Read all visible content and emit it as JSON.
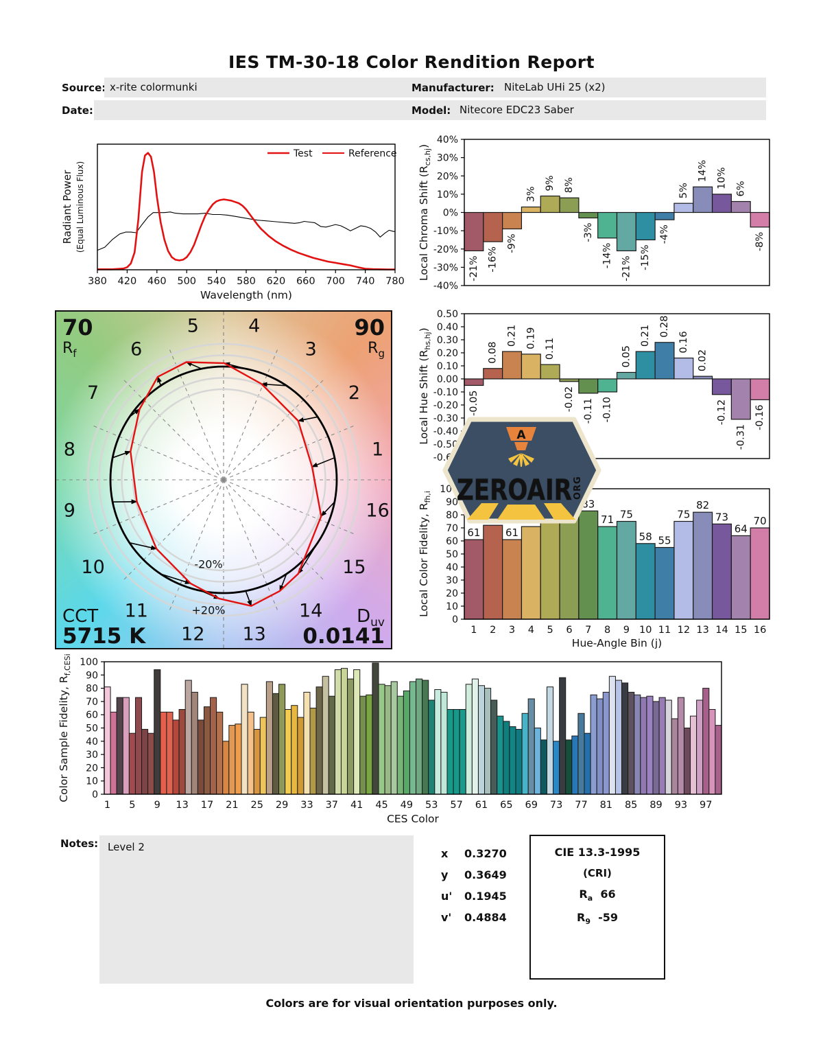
{
  "title": "IES TM-30-18 Color Rendition Report",
  "header": {
    "source_label": "Source:",
    "source_value": "x-rite colormunki",
    "manufacturer_label": "Manufacturer:",
    "manufacturer_value": "NiteLab UHi 25 (x2)",
    "date_label": "Date:",
    "date_value": "",
    "model_label": "Model:",
    "model_value": "Nitecore EDC23 Saber"
  },
  "colors": {
    "test_red": "#e31212",
    "box_gray": "#e8e8e8",
    "bin_colors": [
      "#a25a68",
      "#b5634f",
      "#c98350",
      "#d9b363",
      "#afaa56",
      "#8b9e53",
      "#63904f",
      "#4fb391",
      "#64a8a3",
      "#2e8fa2",
      "#3f7ea7",
      "#b2bce7",
      "#878cb8",
      "#77589c",
      "#a383ad",
      "#d27ea9"
    ],
    "cvg_wheel": [
      "#dcc89a",
      "#eda173",
      "#f2a9bb",
      "#cfaaec",
      "#a9c6f2",
      "#5cd8ea",
      "#7cd8a8",
      "#93cb80"
    ],
    "logo_navy": "#3c4e63",
    "logo_orange": "#e8833c",
    "logo_yellow": "#f4c340",
    "logo_cream": "#ede4cc"
  },
  "chart_data": {
    "spd": {
      "type": "line",
      "xlabel": "Wavelength (nm)",
      "ylabel_line1": "Radiant Power",
      "ylabel_line2": "(Equal Luminous Flux)",
      "xlim": [
        380,
        780
      ],
      "xticks": [
        380,
        420,
        460,
        500,
        540,
        580,
        620,
        660,
        700,
        740,
        780
      ],
      "legend": [
        {
          "label": "Test",
          "swatch": "#e31212",
          "text_color": "#e31212"
        },
        {
          "label": "Reference",
          "swatch": "#e31212",
          "text_color": "#111111"
        }
      ],
      "series": [
        {
          "name": "Test",
          "color": "#e31212",
          "width": 2.6,
          "x": [
            380,
            400,
            415,
            420,
            425,
            430,
            435,
            440,
            444,
            448,
            452,
            456,
            460,
            465,
            470,
            475,
            480,
            485,
            490,
            495,
            500,
            505,
            510,
            515,
            520,
            525,
            530,
            535,
            540,
            545,
            550,
            555,
            560,
            565,
            570,
            575,
            580,
            585,
            590,
            595,
            600,
            610,
            620,
            630,
            640,
            650,
            660,
            670,
            680,
            690,
            700,
            710,
            720,
            730,
            740,
            750,
            760,
            770,
            780
          ],
          "y": [
            0.004,
            0.004,
            0.01,
            0.02,
            0.05,
            0.14,
            0.4,
            0.78,
            0.91,
            0.93,
            0.9,
            0.78,
            0.58,
            0.38,
            0.24,
            0.15,
            0.1,
            0.08,
            0.075,
            0.08,
            0.1,
            0.14,
            0.2,
            0.28,
            0.36,
            0.43,
            0.48,
            0.52,
            0.545,
            0.555,
            0.56,
            0.555,
            0.55,
            0.54,
            0.53,
            0.51,
            0.48,
            0.44,
            0.4,
            0.36,
            0.325,
            0.27,
            0.225,
            0.19,
            0.16,
            0.135,
            0.115,
            0.095,
            0.08,
            0.065,
            0.055,
            0.045,
            0.035,
            0.02,
            0.008,
            0.005,
            0.004,
            0.003,
            0.003
          ]
        },
        {
          "name": "Reference",
          "color": "#000000",
          "width": 1.1,
          "x": [
            380,
            390,
            400,
            410,
            418,
            425,
            432,
            440,
            448,
            455,
            462,
            470,
            478,
            485,
            495,
            505,
            515,
            525,
            535,
            545,
            555,
            565,
            575,
            585,
            595,
            605,
            615,
            625,
            635,
            645,
            652,
            658,
            665,
            672,
            680,
            687,
            694,
            700,
            707,
            714,
            720,
            727,
            734,
            740,
            747,
            754,
            760,
            766,
            772,
            778,
            780
          ],
          "y": [
            0.155,
            0.18,
            0.24,
            0.285,
            0.3,
            0.3,
            0.295,
            0.36,
            0.42,
            0.455,
            0.455,
            0.455,
            0.46,
            0.45,
            0.445,
            0.445,
            0.445,
            0.45,
            0.44,
            0.44,
            0.435,
            0.425,
            0.415,
            0.405,
            0.395,
            0.39,
            0.385,
            0.38,
            0.375,
            0.37,
            0.375,
            0.385,
            0.38,
            0.375,
            0.345,
            0.34,
            0.35,
            0.36,
            0.35,
            0.33,
            0.31,
            0.33,
            0.35,
            0.345,
            0.33,
            0.3,
            0.26,
            0.29,
            0.315,
            0.305,
            0.305
          ]
        }
      ]
    },
    "chroma": {
      "type": "bar",
      "ylabel_pre": "Local Chroma Shift (R",
      "ylabel_sub": "cs,hj",
      "ylabel_post": ")",
      "ylim": [
        -40,
        40
      ],
      "ytick_vals": [
        40,
        30,
        20,
        10,
        0,
        -10,
        -20,
        -30,
        -40
      ],
      "ytick_labels": [
        "40%",
        "30%",
        "20%",
        "10%",
        "0%",
        "-10%",
        "-20%",
        "-30%",
        "-40%"
      ],
      "values": [
        -21,
        -16,
        -9,
        3,
        9,
        8,
        -3,
        -14,
        -21,
        -15,
        -4,
        5,
        14,
        10,
        6,
        -8
      ],
      "labels": [
        "-21%",
        "-16%",
        "-9%",
        "3%",
        "9%",
        "8%",
        "-3%",
        "-14%",
        "-21%",
        "-15%",
        "-4%",
        "5%",
        "14%",
        "10%",
        "6%",
        "-8%"
      ],
      "label_mode": "rotated"
    },
    "hue": {
      "type": "bar",
      "ylabel_pre": "Local Hue Shift (R",
      "ylabel_sub": "hs,hj",
      "ylabel_post": ")",
      "ylim": [
        -0.611,
        0.5
      ],
      "ytick_vals": [
        0.5,
        0.4,
        0.3,
        0.2,
        0.1,
        0,
        -0.1,
        -0.2,
        -0.3,
        -0.4,
        -0.5,
        -0.6
      ],
      "ytick_labels": [
        "0.50",
        "0.40",
        "0.30",
        "0.20",
        "0.10",
        "0.00",
        "-0.10",
        "-0.20",
        "-0.30",
        "-0.40",
        "-0.50",
        "-0.60"
      ],
      "values": [
        -0.05,
        0.08,
        0.21,
        0.19,
        0.11,
        -0.02,
        -0.11,
        -0.1,
        0.05,
        0.21,
        0.28,
        0.16,
        0.02,
        -0.12,
        -0.31,
        -0.16
      ],
      "labels": [
        "-0.05",
        "0.08",
        "0.21",
        "0.19",
        "0.11",
        "-0.02",
        "-0.11",
        "-0.10",
        "0.05",
        "0.21",
        "0.28",
        "0.16",
        "0.02",
        "-0.12",
        "-0.31",
        "-0.16"
      ],
      "label_mode": "rotated"
    },
    "fidelity": {
      "type": "bar",
      "ylabel_pre": "Local Color Fidelity, R",
      "ylabel_sub": "fh,i",
      "ylabel_post": "",
      "xlabel": "Hue-Angle Bin (j)",
      "ylim": [
        0,
        100
      ],
      "ytick_vals": [
        0,
        10,
        20,
        30,
        40,
        50,
        60,
        70,
        80,
        90,
        100
      ],
      "ytick_labels": [
        "0",
        "10",
        "20",
        "30",
        "40",
        "50",
        "60",
        "70",
        "80",
        "90",
        "100"
      ],
      "values": [
        61,
        72,
        61,
        71,
        76,
        86,
        83,
        71,
        75,
        58,
        55,
        75,
        82,
        73,
        64,
        70
      ],
      "labels": [
        "61",
        "72",
        "61",
        "71",
        "76",
        "86",
        "83",
        "71",
        "75",
        "58",
        "55",
        "75",
        "82",
        "73",
        "64",
        "70"
      ],
      "label_mode": "horizontal",
      "xticks": [
        1,
        2,
        3,
        4,
        5,
        6,
        7,
        8,
        9,
        10,
        11,
        12,
        13,
        14,
        15,
        16
      ]
    },
    "ces": {
      "type": "bar",
      "ylabel_pre": "Color Sample Fidelity, R",
      "ylabel_sub": "f,CESi",
      "ylabel_post": "",
      "xlabel": "CES Color",
      "ylim": [
        0,
        100
      ],
      "ytick_vals": [
        0,
        10,
        20,
        30,
        40,
        50,
        60,
        70,
        80,
        90,
        100
      ],
      "ytick_labels": [
        "0",
        "10",
        "20",
        "30",
        "40",
        "50",
        "60",
        "70",
        "80",
        "90",
        "100"
      ],
      "values": [
        81,
        62,
        73,
        73,
        46,
        73,
        49,
        46,
        94,
        62,
        62,
        56,
        64,
        86,
        77,
        56,
        66,
        73,
        62,
        40,
        52,
        53,
        83,
        62,
        49,
        58,
        85,
        76,
        83,
        64,
        67,
        58,
        77,
        65,
        81,
        89,
        74,
        94,
        95,
        87,
        94,
        74,
        75,
        99,
        83,
        82,
        85,
        74,
        78,
        85,
        87,
        86,
        71,
        79,
        77,
        64,
        64,
        64,
        83,
        87,
        82,
        80,
        71,
        59,
        55,
        51,
        49,
        61,
        72,
        50,
        41,
        81,
        40,
        88,
        41,
        44,
        61,
        46,
        75,
        72,
        77,
        89,
        86,
        84,
        77,
        75,
        73,
        74,
        70,
        73,
        71,
        57,
        73,
        50,
        59,
        71,
        80,
        64,
        52
      ],
      "bar_colors": [
        "#f4c8da",
        "#cf7296",
        "#53444c",
        "#d9a0bc",
        "#a04a50",
        "#8e4a4e",
        "#7e4347",
        "#8c4c4a",
        "#403c3c",
        "#e55f4d",
        "#e06350",
        "#b5473c",
        "#9c4a3e",
        "#bca6a0",
        "#a08578",
        "#7c4a3a",
        "#8a5a42",
        "#a4624a",
        "#b4714e",
        "#d98642",
        "#e09a55",
        "#ef9c4c",
        "#f2e2c4",
        "#f4c28a",
        "#d89440",
        "#eec45c",
        "#baa088",
        "#5c5a40",
        "#8f9a58",
        "#f2cc50",
        "#e8b83e",
        "#cf9a36",
        "#f4e0b0",
        "#b09a48",
        "#6e6648",
        "#c4c0a0",
        "#626a4a",
        "#d2dca8",
        "#c8d498",
        "#8a9a60",
        "#dce8b8",
        "#74904c",
        "#7aa641",
        "#44483c",
        "#98c888",
        "#9ab886",
        "#a8c8a0",
        "#78b478",
        "#58a868",
        "#78b890",
        "#70a882",
        "#487852",
        "#1e8474",
        "#c8ece0",
        "#c0e8d8",
        "#189a88",
        "#16988a",
        "#1a9a8c",
        "#d0ecdc",
        "#e0f2ea",
        "#bcd4dc",
        "#a8c0bc",
        "#485c58",
        "#18948e",
        "#0f7e7c",
        "#128486",
        "#107a80",
        "#48b4c8",
        "#688ea6",
        "#6cb4dc",
        "#0c5a60",
        "#c4d8e4",
        "#2888c8",
        "#383c40",
        "#14503c",
        "#2878b8",
        "#487a9c",
        "#2470ac",
        "#8a9cd0",
        "#8090c4",
        "#8a96cc",
        "#dce2f0",
        "#b8c2e4",
        "#3a3c44",
        "#5c5260",
        "#8886b4",
        "#9078b0",
        "#9a82c0",
        "#786a94",
        "#9a7cb4",
        "#d8d4dc",
        "#a8869c",
        "#b48aa8",
        "#6c4a5c",
        "#e8c0d4",
        "#cda0c4",
        "#a8608a",
        "#d794ba",
        "#a7618b"
      ],
      "xticks": [
        1,
        5,
        9,
        13,
        17,
        21,
        25,
        29,
        33,
        37,
        41,
        45,
        49,
        53,
        57,
        61,
        65,
        69,
        73,
        77,
        81,
        85,
        89,
        93,
        97
      ]
    }
  },
  "cvg": {
    "rf_value": "70",
    "rf_pre": "R",
    "rf_sub": "f",
    "rg_value": "90",
    "rg_pre": "R",
    "rg_sub": "g",
    "cct_label": "CCT",
    "cct_value": "5715 K",
    "duv_pre": "D",
    "duv_sub": "uv",
    "duv_value": "0.0141",
    "ring_inner_label": "-20%",
    "ring_outer_label": "+20%",
    "bin_numbers": [
      "1",
      "2",
      "3",
      "4",
      "5",
      "6",
      "7",
      "8",
      "9",
      "10",
      "11",
      "12",
      "13",
      "14",
      "15",
      "16"
    ],
    "chroma_shift": [
      -0.21,
      -0.16,
      -0.09,
      0.03,
      0.09,
      0.08,
      -0.03,
      -0.14,
      -0.21,
      -0.15,
      -0.04,
      0.05,
      0.14,
      0.1,
      0.06,
      -0.08
    ],
    "hue_shift": [
      -0.05,
      0.08,
      0.21,
      0.19,
      0.11,
      -0.02,
      -0.11,
      -0.1,
      0.05,
      0.21,
      0.28,
      0.16,
      0.02,
      -0.12,
      -0.31,
      -0.16
    ]
  },
  "logo": {
    "word": "ZEROAIR",
    "org": "ORG"
  },
  "notes": {
    "label": "Notes:",
    "value": "Level 2"
  },
  "chromaticity": {
    "rows": [
      {
        "label": "x",
        "value": "0.3270"
      },
      {
        "label": "y",
        "value": "0.3649"
      },
      {
        "label": "u'",
        "value": "0.1945"
      },
      {
        "label": "v'",
        "value": "0.4884"
      }
    ]
  },
  "cri": {
    "title": "CIE 13.3-1995",
    "subtitle": "(CRI)",
    "ra_pre": "R",
    "ra_sub": "a",
    "ra_value": "66",
    "r9_pre": "R",
    "r9_sub": "9",
    "r9_value": "-59"
  },
  "footer": "Colors are for visual orientation purposes only."
}
